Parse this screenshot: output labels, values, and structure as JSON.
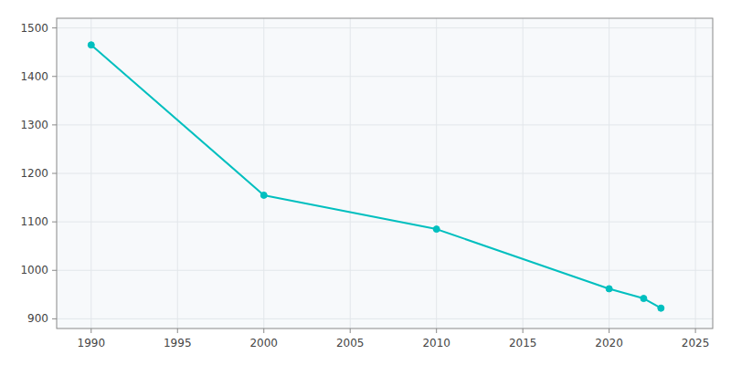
{
  "chart_data": {
    "type": "line",
    "x": [
      1990,
      2000,
      2010,
      2020,
      2022,
      2023
    ],
    "values": [
      1465,
      1155,
      1085,
      962,
      942,
      922
    ],
    "color": "#00BFBF",
    "marker": "circle",
    "xlim": [
      1988,
      2026
    ],
    "ylim": [
      880,
      1520
    ],
    "xticks": [
      1990,
      1995,
      2000,
      2005,
      2010,
      2015,
      2020,
      2025
    ],
    "yticks": [
      900,
      1000,
      1100,
      1200,
      1300,
      1400,
      1500
    ],
    "grid": true
  }
}
